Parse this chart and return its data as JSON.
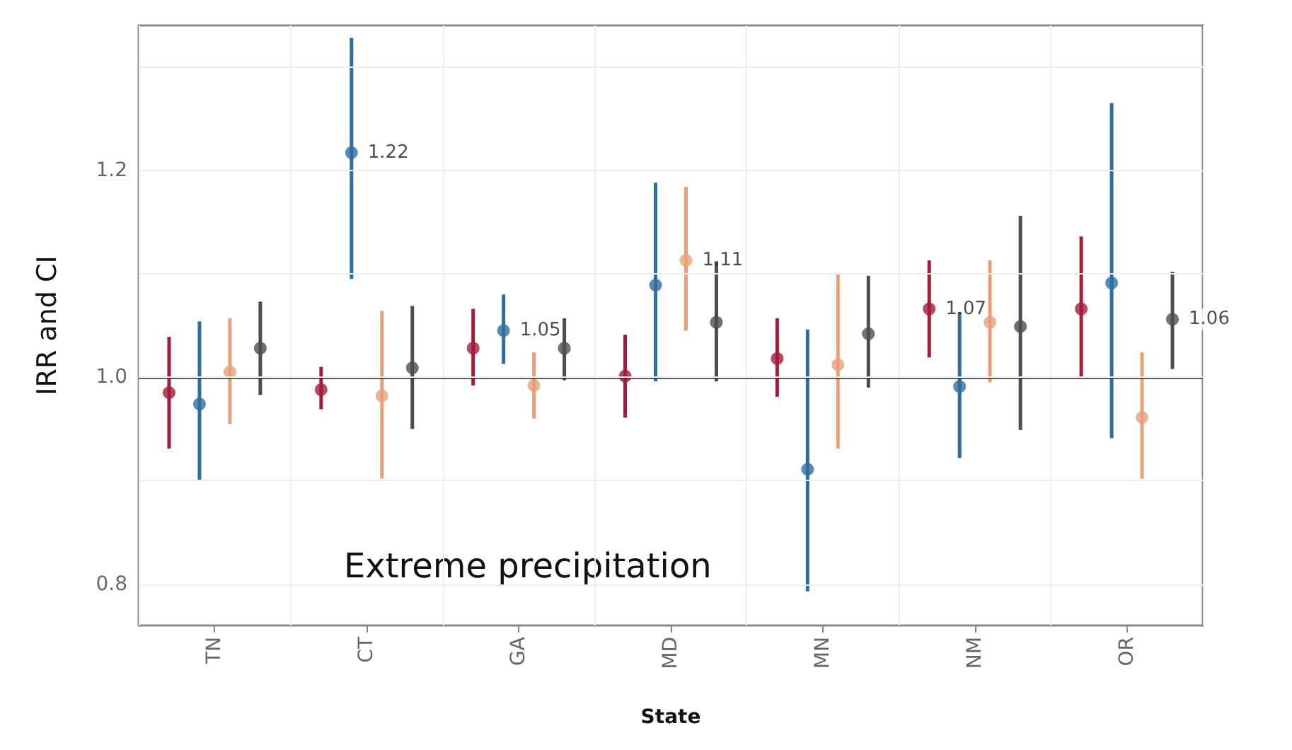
{
  "chart_data": {
    "type": "scatter",
    "xlabel": "State",
    "ylabel": "IRR and CI",
    "categories": [
      "TN",
      "CT",
      "GA",
      "MD",
      "MN",
      "NM",
      "OR"
    ],
    "series": [
      {
        "color": "#a51c3a",
        "values": [
          0.985,
          0.988,
          1.028,
          1.001,
          1.018,
          1.066,
          1.066
        ],
        "errors": [
          [
            0.931,
            1.039
          ],
          [
            0.969,
            1.01
          ],
          [
            0.992,
            1.066
          ],
          [
            0.961,
            1.041
          ],
          [
            0.981,
            1.057
          ],
          [
            1.019,
            1.113
          ],
          [
            0.999,
            1.136
          ]
        ],
        "value_labels": [
          null,
          null,
          null,
          null,
          null,
          "1.07",
          null
        ]
      },
      {
        "color": "#2e6e9e",
        "values": [
          0.974,
          1.217,
          1.045,
          1.089,
          0.911,
          0.991,
          1.091
        ],
        "errors": [
          [
            0.9,
            1.054
          ],
          [
            1.095,
            1.328
          ],
          [
            1.013,
            1.08
          ],
          [
            0.996,
            1.188
          ],
          [
            0.793,
            1.046
          ],
          [
            0.922,
            1.063
          ],
          [
            0.941,
            1.265
          ]
        ],
        "value_labels": [
          null,
          "1.22",
          "1.05",
          null,
          null,
          null,
          null
        ]
      },
      {
        "color": "#e8a07a",
        "values": [
          1.005,
          0.982,
          0.992,
          1.113,
          1.012,
          1.053,
          0.961
        ],
        "errors": [
          [
            0.955,
            1.057
          ],
          [
            0.902,
            1.064
          ],
          [
            0.96,
            1.024
          ],
          [
            1.045,
            1.184
          ],
          [
            0.931,
            1.1
          ],
          [
            0.995,
            1.113
          ],
          [
            0.902,
            1.024
          ]
        ],
        "value_labels": [
          null,
          null,
          null,
          "1.11",
          null,
          null,
          null
        ]
      },
      {
        "color": "#4d4d4d",
        "values": [
          1.028,
          1.009,
          1.028,
          1.053,
          1.042,
          1.049,
          1.056
        ],
        "errors": [
          [
            0.983,
            1.073
          ],
          [
            0.95,
            1.069
          ],
          [
            0.997,
            1.057
          ],
          [
            0.996,
            1.112
          ],
          [
            0.99,
            1.098
          ],
          [
            0.949,
            1.156
          ],
          [
            1.008,
            1.102
          ]
        ],
        "value_labels": [
          null,
          null,
          null,
          null,
          null,
          null,
          "1.06"
        ]
      }
    ],
    "ylim": [
      0.76,
      1.34
    ],
    "yticks": [
      0.8,
      {
        "value": 0.9,
        "label": null
      },
      {
        "value": 1,
        "label": "1.0"
      },
      {
        "value": 1.1,
        "label": null
      },
      1.2,
      {
        "value": 1.3,
        "label": null
      }
    ],
    "ref_lines": [
      {
        "axis": "y",
        "value": 1,
        "color": "#333333"
      }
    ],
    "annotations": [
      "Extreme precipitation"
    ],
    "grid": true,
    "marker": "circle"
  }
}
